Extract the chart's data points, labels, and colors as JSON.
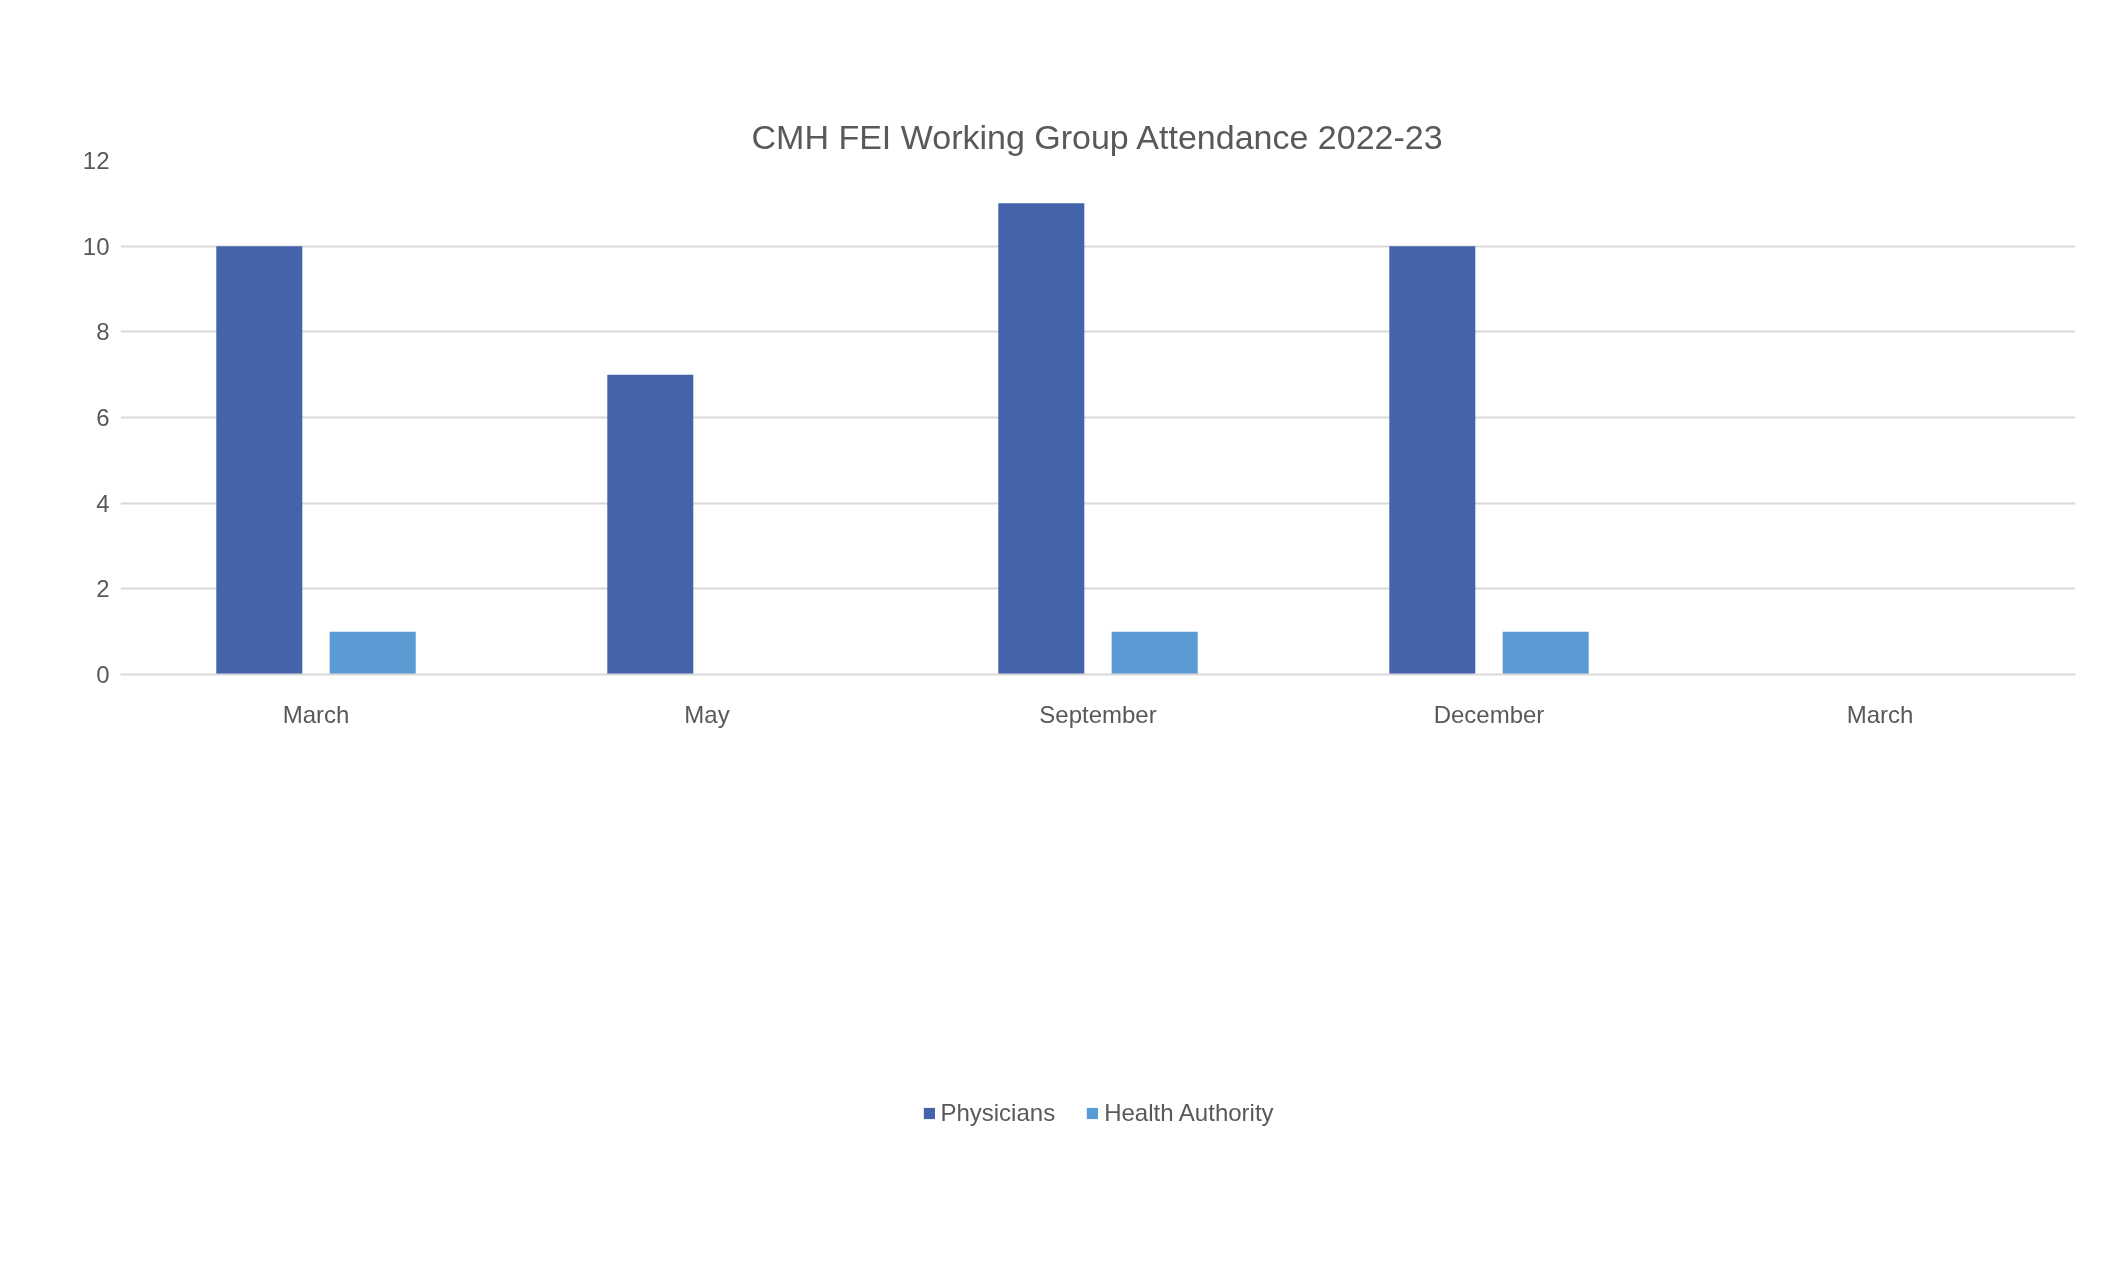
{
  "chart_data": {
    "type": "bar",
    "title": "CMH FEI Working Group Attendance 2022-23",
    "categories": [
      "March",
      "May",
      "September",
      "December",
      "March"
    ],
    "series": [
      {
        "name": "Physicians",
        "color": "#4563ab",
        "values": [
          10,
          7,
          11,
          10,
          null
        ]
      },
      {
        "name": "Health Authority",
        "color": "#5b9bd5",
        "values": [
          1,
          0,
          1,
          1,
          null
        ]
      }
    ],
    "ylim": [
      0,
      12
    ],
    "yticks": [
      0,
      2,
      4,
      6,
      8,
      10,
      12
    ],
    "grid": "y",
    "legend": "bottom"
  }
}
